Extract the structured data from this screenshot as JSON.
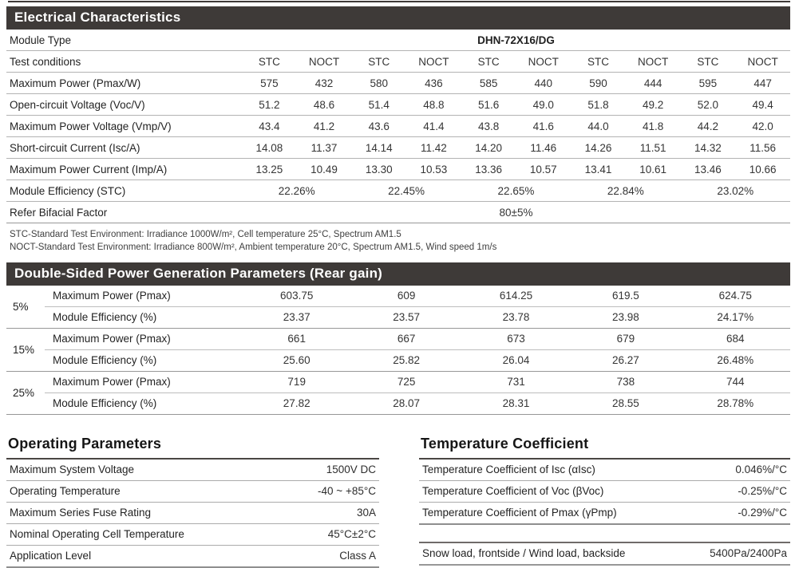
{
  "page": {
    "accent_color": "#3e3a38"
  },
  "electrical": {
    "title": "Electrical Characteristics",
    "module_type_label": "Module Type",
    "module_type_value": "DHN-72X16/DG",
    "test_conditions_label": "Test conditions",
    "condition_headers": [
      "STC",
      "NOCT",
      "STC",
      "NOCT",
      "STC",
      "NOCT",
      "STC",
      "NOCT",
      "STC",
      "NOCT"
    ],
    "rows": [
      {
        "label": "Maximum Power (Pmax/W)",
        "values": [
          "575",
          "432",
          "580",
          "436",
          "585",
          "440",
          "590",
          "444",
          "595",
          "447"
        ]
      },
      {
        "label": "Open-circuit Voltage (Voc/V)",
        "values": [
          "51.2",
          "48.6",
          "51.4",
          "48.8",
          "51.6",
          "49.0",
          "51.8",
          "49.2",
          "52.0",
          "49.4"
        ]
      },
      {
        "label": "Maximum Power Voltage (Vmp/V)",
        "values": [
          "43.4",
          "41.2",
          "43.6",
          "41.4",
          "43.8",
          "41.6",
          "44.0",
          "41.8",
          "44.2",
          "42.0"
        ]
      },
      {
        "label": "Short-circuit Current (Isc/A)",
        "values": [
          "14.08",
          "11.37",
          "14.14",
          "11.42",
          "14.20",
          "11.46",
          "14.26",
          "11.51",
          "14.32",
          "11.56"
        ]
      },
      {
        "label": "Maximum Power Current (Imp/A)",
        "values": [
          "13.25",
          "10.49",
          "13.30",
          "10.53",
          "13.36",
          "10.57",
          "13.41",
          "10.61",
          "13.46",
          "10.66"
        ]
      }
    ],
    "efficiency_row": {
      "label": "Module Efficiency (STC)",
      "values": [
        "22.26%",
        "22.45%",
        "22.65%",
        "22.84%",
        "23.02%"
      ]
    },
    "bifacial_row": {
      "label": "Refer Bifacial Factor",
      "value": "80±5%"
    },
    "footnotes": [
      "STC-Standard Test Environment: Irradiance 1000W/m², Cell temperature 25°C, Spectrum AM1.5",
      "NOCT-Standard Test Environment: Irradiance 800W/m², Ambient temperature 20°C, Spectrum AM1.5, Wind speed 1m/s"
    ]
  },
  "rear_gain": {
    "title": "Double-Sided Power Generation Parameters (Rear gain)",
    "groups": [
      {
        "gain": "5%",
        "rows": [
          {
            "label": "Maximum Power (Pmax)",
            "values": [
              "603.75",
              "609",
              "614.25",
              "619.5",
              "624.75"
            ]
          },
          {
            "label": "Module Efficiency (%)",
            "values": [
              "23.37",
              "23.57",
              "23.78",
              "23.98",
              "24.17%"
            ]
          }
        ]
      },
      {
        "gain": "15%",
        "rows": [
          {
            "label": "Maximum Power (Pmax)",
            "values": [
              "661",
              "667",
              "673",
              "679",
              "684"
            ]
          },
          {
            "label": "Module Efficiency (%)",
            "values": [
              "25.60",
              "25.82",
              "26.04",
              "26.27",
              "26.48%"
            ]
          }
        ]
      },
      {
        "gain": "25%",
        "rows": [
          {
            "label": "Maximum Power (Pmax)",
            "values": [
              "719",
              "725",
              "731",
              "738",
              "744"
            ]
          },
          {
            "label": "Module Efficiency (%)",
            "values": [
              "27.82",
              "28.07",
              "28.31",
              "28.55",
              "28.78%"
            ]
          }
        ]
      }
    ]
  },
  "operating": {
    "title": "Operating Parameters",
    "rows": [
      {
        "label": "Maximum System Voltage",
        "value": "1500V DC"
      },
      {
        "label": "Operating Temperature",
        "value": "-40 ~ +85°C"
      },
      {
        "label": "Maximum Series Fuse Rating",
        "value": "30A"
      },
      {
        "label": "Nominal Operating Cell Temperature",
        "value": "45°C±2°C"
      },
      {
        "label": "Application Level",
        "value": "Class A"
      }
    ]
  },
  "temperature": {
    "title": "Temperature Coefficient",
    "rows": [
      {
        "label": "Temperature Coefficient of Isc (αIsc)",
        "value": "0.046%/°C"
      },
      {
        "label": "Temperature Coefficient of Voc (βVoc)",
        "value": "-0.25%/°C"
      },
      {
        "label": "Temperature Coefficient of Pmax (γPmp)",
        "value": "-0.29%/°C"
      }
    ],
    "load_row": {
      "label": "Snow load, frontside / Wind load, backside",
      "value": "5400Pa/2400Pa"
    }
  }
}
